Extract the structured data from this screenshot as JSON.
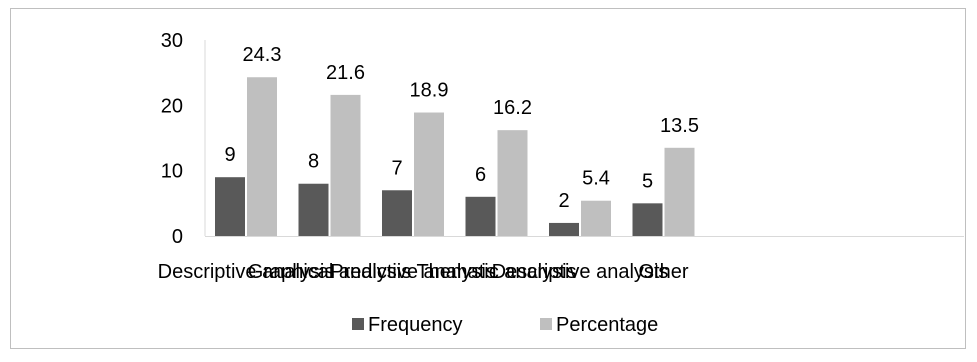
{
  "chart_data": {
    "type": "bar",
    "categories": [
      "Descriptive analysis",
      "Graphical analysis",
      "Predictive analysis",
      "Thematic analysis",
      "Descriptive analysis",
      "Other"
    ],
    "series": [
      {
        "name": "Frequency",
        "values": [
          9,
          8,
          7,
          6,
          2,
          5
        ],
        "color": "#595959"
      },
      {
        "name": "Percentage",
        "values": [
          24.3,
          21.6,
          18.9,
          16.2,
          5.4,
          13.5
        ],
        "color": "#bfbfbf"
      }
    ],
    "ylim": [
      0,
      30
    ],
    "yticks": [
      0,
      10,
      20,
      30
    ],
    "grid": false,
    "legend_position": "bottom"
  }
}
